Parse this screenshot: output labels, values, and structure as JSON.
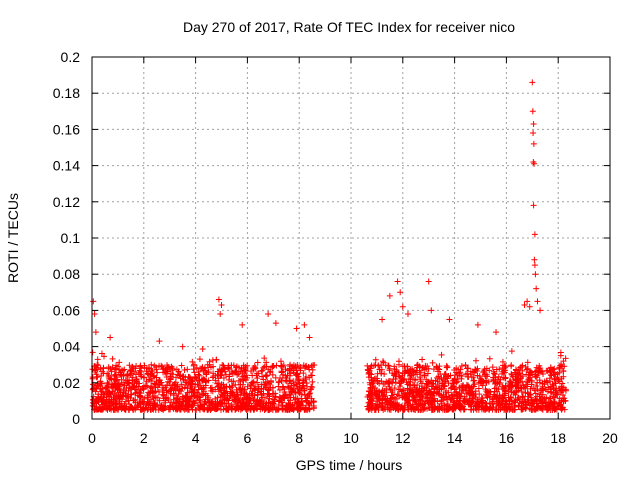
{
  "chart_data": {
    "type": "scatter",
    "title": "Day 270 of 2017, Rate Of TEC Index for receiver nico",
    "xlabel": "GPS time / hours",
    "ylabel": "ROTI / TECUs",
    "xlim": [
      0,
      20
    ],
    "ylim": [
      0,
      0.2
    ],
    "x_ticks": [
      0,
      2,
      4,
      6,
      8,
      10,
      12,
      14,
      16,
      18,
      20
    ],
    "y_ticks": [
      0,
      0.02,
      0.04,
      0.06,
      0.08,
      0.1,
      0.12,
      0.14,
      0.16,
      0.18,
      0.2
    ],
    "x_tick_labels": [
      "0",
      "2",
      "4",
      "6",
      "8",
      "10",
      "12",
      "14",
      "16",
      "18",
      "20"
    ],
    "y_tick_labels": [
      "0",
      "0.02",
      "0.04",
      "0.06",
      "0.08",
      "0.1",
      "0.12",
      "0.14",
      "0.16",
      "0.18",
      "0.2"
    ],
    "grid": true,
    "marker": "+",
    "series_color": "#ff0000",
    "data_segments": [
      {
        "x_range": [
          0.0,
          8.6
        ],
        "typical_y": [
          0.005,
          0.03
        ],
        "notes": "dense band"
      },
      {
        "x_range": [
          10.6,
          18.3
        ],
        "typical_y": [
          0.005,
          0.03
        ],
        "notes": "dense band"
      }
    ],
    "highlight_points": [
      {
        "x": 0.05,
        "y": 0.065
      },
      {
        "x": 0.1,
        "y": 0.058
      },
      {
        "x": 0.15,
        "y": 0.048
      },
      {
        "x": 0.7,
        "y": 0.045
      },
      {
        "x": 2.6,
        "y": 0.043
      },
      {
        "x": 3.5,
        "y": 0.04
      },
      {
        "x": 4.9,
        "y": 0.066
      },
      {
        "x": 5.0,
        "y": 0.063
      },
      {
        "x": 4.95,
        "y": 0.058
      },
      {
        "x": 5.8,
        "y": 0.052
      },
      {
        "x": 6.8,
        "y": 0.058
      },
      {
        "x": 7.1,
        "y": 0.053
      },
      {
        "x": 7.9,
        "y": 0.05
      },
      {
        "x": 8.2,
        "y": 0.052
      },
      {
        "x": 8.4,
        "y": 0.045
      },
      {
        "x": 11.2,
        "y": 0.055
      },
      {
        "x": 11.5,
        "y": 0.068
      },
      {
        "x": 11.8,
        "y": 0.076
      },
      {
        "x": 11.9,
        "y": 0.07
      },
      {
        "x": 12.0,
        "y": 0.062
      },
      {
        "x": 12.2,
        "y": 0.058
      },
      {
        "x": 13.0,
        "y": 0.076
      },
      {
        "x": 13.1,
        "y": 0.06
      },
      {
        "x": 13.8,
        "y": 0.055
      },
      {
        "x": 14.9,
        "y": 0.052
      },
      {
        "x": 15.6,
        "y": 0.048
      },
      {
        "x": 16.7,
        "y": 0.063
      },
      {
        "x": 16.8,
        "y": 0.065
      },
      {
        "x": 16.9,
        "y": 0.062
      },
      {
        "x": 17.0,
        "y": 0.186
      },
      {
        "x": 17.02,
        "y": 0.17
      },
      {
        "x": 17.05,
        "y": 0.163
      },
      {
        "x": 17.03,
        "y": 0.158
      },
      {
        "x": 17.06,
        "y": 0.152
      },
      {
        "x": 17.04,
        "y": 0.142
      },
      {
        "x": 17.07,
        "y": 0.141
      },
      {
        "x": 17.05,
        "y": 0.118
      },
      {
        "x": 17.1,
        "y": 0.102
      },
      {
        "x": 17.08,
        "y": 0.088
      },
      {
        "x": 17.1,
        "y": 0.085
      },
      {
        "x": 17.12,
        "y": 0.08
      },
      {
        "x": 17.15,
        "y": 0.072
      },
      {
        "x": 17.2,
        "y": 0.065
      },
      {
        "x": 17.3,
        "y": 0.06
      },
      {
        "x": 18.1,
        "y": 0.035
      },
      {
        "x": 18.2,
        "y": 0.032
      }
    ]
  }
}
